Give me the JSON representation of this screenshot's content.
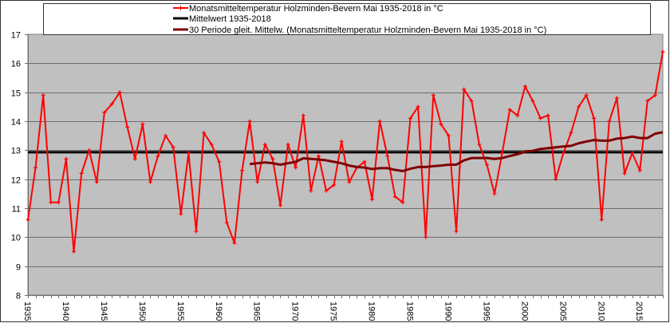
{
  "chart_data": {
    "type": "line",
    "title": "",
    "xlabel": "",
    "ylabel": "",
    "ylim": [
      8,
      17
    ],
    "xlim": [
      1935,
      2018
    ],
    "y_ticks": [
      8,
      9,
      10,
      11,
      12,
      13,
      14,
      15,
      16,
      17
    ],
    "x_tick_labels": [
      "1935",
      "1940",
      "1945",
      "1950",
      "1955",
      "1960",
      "1965",
      "1970",
      "1975",
      "1980",
      "1985",
      "1990",
      "1995",
      "2000",
      "2005",
      "2010",
      "2015"
    ],
    "grid": {
      "horizontal": true,
      "vertical": false
    },
    "legend_position": "top",
    "plot_background": "#c0c0c0",
    "x": [
      1935,
      1936,
      1937,
      1938,
      1939,
      1940,
      1941,
      1942,
      1943,
      1944,
      1945,
      1946,
      1947,
      1948,
      1949,
      1950,
      1951,
      1952,
      1953,
      1954,
      1955,
      1956,
      1957,
      1958,
      1959,
      1960,
      1961,
      1962,
      1963,
      1964,
      1965,
      1966,
      1967,
      1968,
      1969,
      1970,
      1971,
      1972,
      1973,
      1974,
      1975,
      1976,
      1977,
      1978,
      1979,
      1980,
      1981,
      1982,
      1983,
      1984,
      1985,
      1986,
      1987,
      1988,
      1989,
      1990,
      1991,
      1992,
      1993,
      1994,
      1995,
      1996,
      1997,
      1998,
      1999,
      2000,
      2001,
      2002,
      2003,
      2004,
      2005,
      2006,
      2007,
      2008,
      2009,
      2010,
      2011,
      2012,
      2013,
      2014,
      2015,
      2016,
      2017,
      2018
    ],
    "series": [
      {
        "name": "Monatsmitteltemperatur Holzminden-Bevern Mai 1935-2018 in °C",
        "color": "#ff0000",
        "marker": "plus",
        "values": [
          10.6,
          12.4,
          14.9,
          11.2,
          11.2,
          12.7,
          9.5,
          12.2,
          13.0,
          11.9,
          14.3,
          14.6,
          15.0,
          13.8,
          12.7,
          13.9,
          11.9,
          12.8,
          13.5,
          13.1,
          10.8,
          12.9,
          10.2,
          13.6,
          13.2,
          12.6,
          10.5,
          9.8,
          12.3,
          14.0,
          11.9,
          13.2,
          12.7,
          11.1,
          13.2,
          12.4,
          14.2,
          11.6,
          12.8,
          11.6,
          11.8,
          13.3,
          11.9,
          12.4,
          12.6,
          11.3,
          14.0,
          12.8,
          11.4,
          11.2,
          14.1,
          14.5,
          10.0,
          14.9,
          13.9,
          13.5,
          10.2,
          15.1,
          14.7,
          13.2,
          12.5,
          11.5,
          12.9,
          14.4,
          14.2,
          15.2,
          14.7,
          14.1,
          14.2,
          12.0,
          12.9,
          13.6,
          14.5,
          14.9,
          14.1,
          10.6,
          14.0,
          14.8,
          12.2,
          12.9,
          12.3,
          14.7,
          14.9,
          16.4
        ]
      },
      {
        "name": "Mittelwert 1935-2018",
        "color": "#000000",
        "constant": 12.93
      },
      {
        "name": "30 Periode gleit. Mittelw. (Monatsmitteltemperatur Holzminden-Bevern Mai 1935-2018 in °C)",
        "color": "#800000",
        "values": [
          null,
          null,
          null,
          null,
          null,
          null,
          null,
          null,
          null,
          null,
          null,
          null,
          null,
          null,
          null,
          null,
          null,
          null,
          null,
          null,
          null,
          null,
          null,
          null,
          null,
          null,
          null,
          null,
          null,
          12.52,
          12.55,
          12.58,
          12.55,
          12.5,
          12.55,
          12.6,
          12.72,
          12.7,
          12.68,
          12.65,
          12.6,
          12.55,
          12.47,
          12.42,
          12.4,
          12.35,
          12.38,
          12.38,
          12.32,
          12.28,
          12.36,
          12.42,
          12.42,
          12.45,
          12.47,
          12.5,
          12.5,
          12.65,
          12.73,
          12.73,
          12.73,
          12.7,
          12.73,
          12.8,
          12.86,
          12.95,
          12.98,
          13.04,
          13.07,
          13.1,
          13.13,
          13.15,
          13.24,
          13.3,
          13.35,
          13.33,
          13.33,
          13.4,
          13.42,
          13.47,
          13.42,
          13.42,
          13.57,
          13.62
        ]
      }
    ]
  },
  "legend": {
    "items": [
      {
        "label": "Monatsmitteltemperatur Holzminden-Bevern Mai 1935-2018 in °C",
        "color": "#ff0000"
      },
      {
        "label": "Mittelwert 1935-2018",
        "color": "#000000"
      },
      {
        "label": "30 Periode gleit. Mittelw. (Monatsmitteltemperatur Holzminden-Bevern Mai 1935-2018 in °C)",
        "color": "#800000"
      }
    ]
  }
}
